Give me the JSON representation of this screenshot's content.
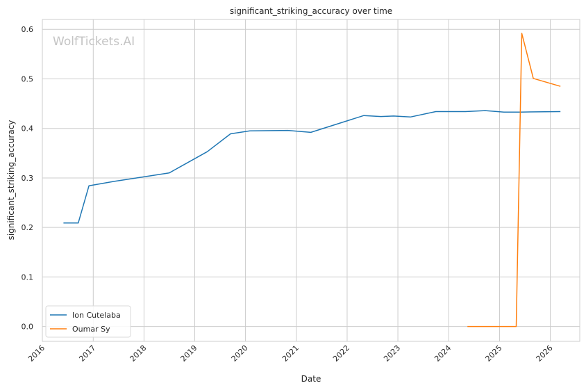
{
  "chart_data": {
    "type": "line",
    "title": "significant_striking_accuracy over time",
    "xlabel": "Date",
    "ylabel": "significant_striking_accuracy",
    "watermark": "WolfTickets.AI",
    "x_ticks": [
      "2016",
      "2017",
      "2018",
      "2019",
      "2020",
      "2021",
      "2022",
      "2023",
      "2024",
      "2025",
      "2026"
    ],
    "y_ticks": [
      "0.0",
      "0.1",
      "0.2",
      "0.3",
      "0.4",
      "0.5",
      "0.6"
    ],
    "xlim": [
      "2016-01-01",
      "2026-08-01"
    ],
    "ylim": [
      -0.03,
      0.62
    ],
    "grid": true,
    "legend_position": "bottom-left",
    "series": [
      {
        "name": "Ion Cutelaba",
        "color": "#1f77b4",
        "points": [
          [
            "2016-06-01",
            0.209
          ],
          [
            "2016-09-15",
            0.209
          ],
          [
            "2016-12-01",
            0.284
          ],
          [
            "2017-06-01",
            0.293
          ],
          [
            "2018-07-01",
            0.31
          ],
          [
            "2019-04-01",
            0.353
          ],
          [
            "2019-09-15",
            0.389
          ],
          [
            "2020-02-01",
            0.395
          ],
          [
            "2020-11-01",
            0.396
          ],
          [
            "2021-04-15",
            0.392
          ],
          [
            "2022-05-01",
            0.426
          ],
          [
            "2022-09-01",
            0.424
          ],
          [
            "2022-12-01",
            0.425
          ],
          [
            "2023-04-01",
            0.423
          ],
          [
            "2023-10-01",
            0.434
          ],
          [
            "2024-05-01",
            0.434
          ],
          [
            "2024-09-20",
            0.436
          ],
          [
            "2025-02-01",
            0.433
          ],
          [
            "2025-06-01",
            0.433
          ],
          [
            "2026-03-15",
            0.434
          ]
        ]
      },
      {
        "name": "Oumar Sy",
        "color": "#ff7f0e",
        "points": [
          [
            "2024-05-15",
            0.0
          ],
          [
            "2025-05-01",
            0.0
          ],
          [
            "2025-06-10",
            0.592
          ],
          [
            "2025-09-01",
            0.501
          ],
          [
            "2026-03-15",
            0.485
          ]
        ]
      }
    ]
  }
}
